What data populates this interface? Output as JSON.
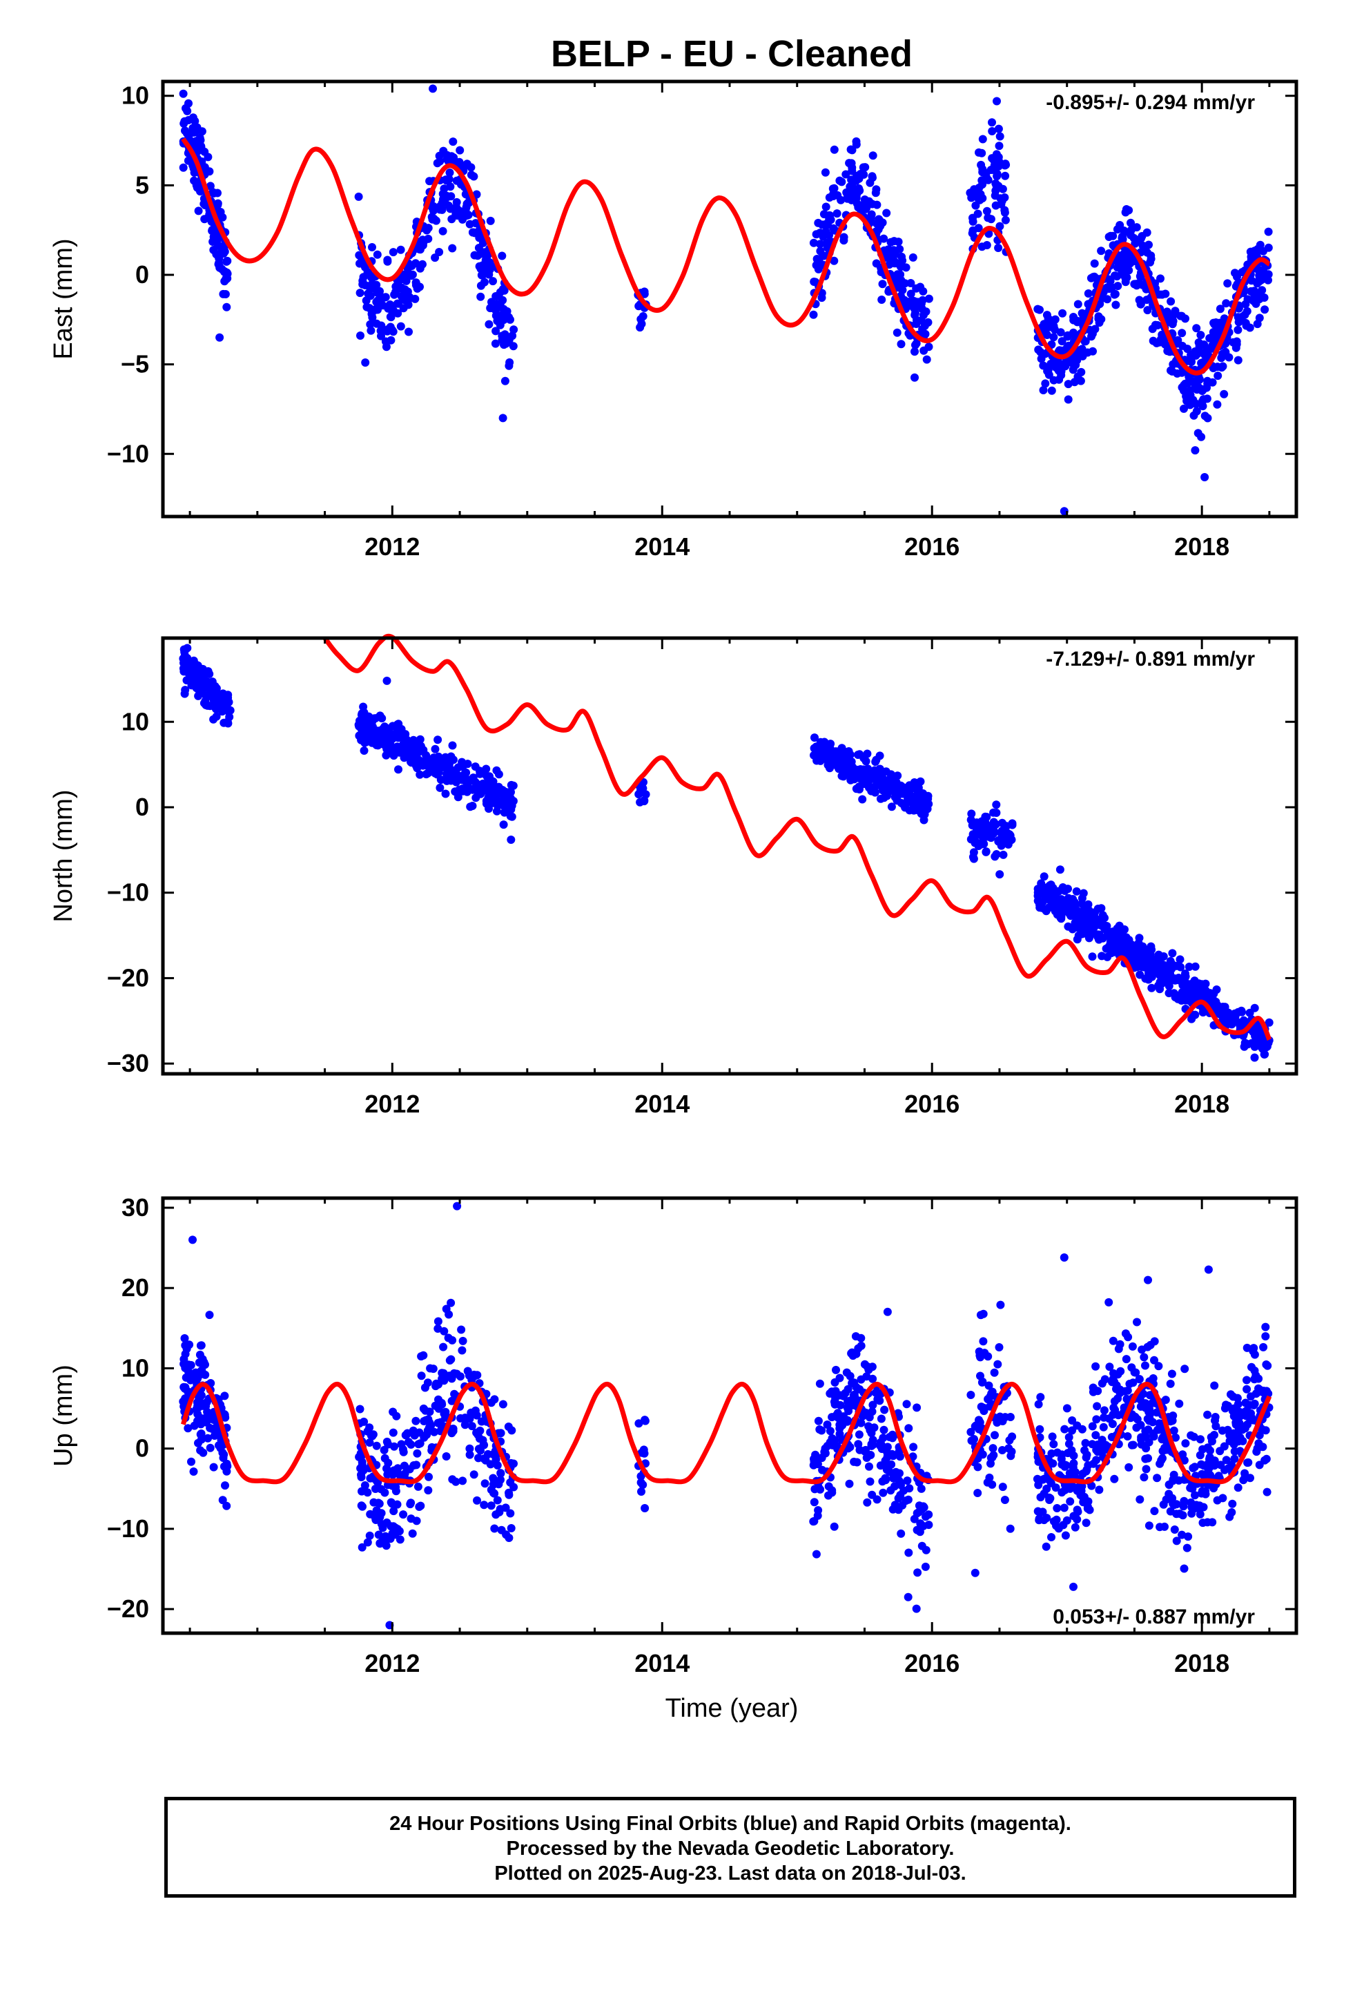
{
  "title": "BELP  - EU - Cleaned",
  "xlabel": "Time (year)",
  "colors": {
    "points": "#0000ff",
    "model": "#ff0000",
    "axes": "#000000",
    "rapid": "#ff00ff"
  },
  "caption": [
    "24 Hour Positions Using Final Orbits (blue) and Rapid Orbits (magenta).",
    "Processed by the Nevada Geodetic Laboratory.",
    "Plotted on 2025-Aug-23. Last data on 2018-Jul-03."
  ],
  "chart_data": [
    {
      "type": "scatter",
      "name": "east",
      "ylabel": "East (mm)",
      "rate_text": "-0.895+/- 0.294 mm/yr",
      "rate_position": "top-right",
      "xlim": [
        2010.3,
        2018.7
      ],
      "ylim": [
        -13.5,
        10.8
      ],
      "xticks": [
        2012,
        2014,
        2016,
        2018
      ],
      "yticks": [
        -10,
        -5,
        0,
        5,
        10
      ],
      "ytick_labels": [
        "−10",
        "−5",
        "0",
        "5",
        "10"
      ],
      "trend": {
        "offset": 0.0,
        "rate": -0.895,
        "t0": 2014.5
      },
      "model_curve": {
        "x": [
          2010.45,
          2010.55,
          2010.7,
          2010.85,
          2011.0,
          2011.15,
          2011.3,
          2011.42,
          2011.55,
          2011.7,
          2011.85,
          2012.0,
          2012.15,
          2012.3,
          2012.42,
          2012.55,
          2012.7,
          2012.85,
          2013.0,
          2013.15,
          2013.3,
          2013.42,
          2013.55,
          2013.7,
          2013.85,
          2014.0,
          2014.15,
          2014.3,
          2014.42,
          2014.55,
          2014.7,
          2014.85,
          2015.0,
          2015.15,
          2015.3,
          2015.42,
          2015.55,
          2015.7,
          2015.85,
          2016.0,
          2016.15,
          2016.3,
          2016.42,
          2016.55,
          2016.7,
          2016.85,
          2017.0,
          2017.15,
          2017.3,
          2017.42,
          2017.55,
          2017.7,
          2017.85,
          2018.0,
          2018.15,
          2018.3,
          2018.42,
          2018.5
        ],
        "y": [
          7.6,
          6.3,
          3.0,
          1.1,
          0.9,
          2.4,
          5.4,
          7.0,
          6.1,
          3.0,
          0.4,
          -0.2,
          1.6,
          4.8,
          6.1,
          5.1,
          2.1,
          -0.5,
          -1.0,
          0.7,
          3.9,
          5.2,
          4.2,
          1.1,
          -1.4,
          -1.9,
          -0.1,
          3.1,
          4.3,
          3.3,
          0.3,
          -2.3,
          -2.7,
          -0.9,
          2.2,
          3.4,
          2.4,
          -0.6,
          -3.1,
          -3.6,
          -1.8,
          1.3,
          2.6,
          1.6,
          -1.5,
          -4.0,
          -4.5,
          -2.7,
          0.4,
          1.7,
          0.7,
          -2.4,
          -4.9,
          -5.4,
          -3.6,
          -0.5,
          0.8,
          0.6
        ]
      },
      "clusters": [
        {
          "t": [
            2010.45,
            2010.78
          ],
          "base": 3.2,
          "amp": 3.6,
          "slope": -6.0,
          "noise": 1.1,
          "n": 150
        },
        {
          "t": [
            2011.75,
            2012.9
          ],
          "base": 1.2,
          "amp": 4.0,
          "slope": -2.0,
          "noise": 1.2,
          "n": 320
        },
        {
          "t": [
            2013.82,
            2013.88
          ],
          "base": -1.6,
          "amp": 0.0,
          "slope": 0.0,
          "noise": 1.2,
          "n": 14
        },
        {
          "t": [
            2015.12,
            2015.98
          ],
          "base": 1.0,
          "amp": 3.2,
          "slope": -1.5,
          "noise": 1.3,
          "n": 260
        },
        {
          "t": [
            2016.28,
            2016.55
          ],
          "base": 3.2,
          "amp": 1.5,
          "slope": 0.0,
          "noise": 1.5,
          "n": 80
        },
        {
          "t": [
            2016.78,
            2018.5
          ],
          "base": -2.3,
          "amp": 3.1,
          "slope": -1.0,
          "noise": 1.2,
          "n": 560
        }
      ],
      "outliers": {
        "x": [
          2011.8,
          2012.82,
          2012.3,
          2016.48,
          2016.98,
          2017.95,
          2018.02,
          2010.72
        ],
        "y": [
          -4.9,
          -8.0,
          10.4,
          9.7,
          -13.2,
          -9.8,
          -11.3,
          -3.5
        ]
      }
    },
    {
      "type": "scatter",
      "name": "north",
      "ylabel": "North (mm)",
      "rate_text": "-7.129+/- 0.891 mm/yr",
      "rate_position": "top-right",
      "xlim": [
        2010.3,
        2018.7
      ],
      "ylim": [
        -31.2,
        19.8
      ],
      "xticks": [
        2012,
        2014,
        2016,
        2018
      ],
      "yticks": [
        -30,
        -20,
        -10,
        0,
        10
      ],
      "ytick_labels": [
        "−30",
        "−20",
        "−10",
        "0",
        "10"
      ],
      "model_curve": {
        "x": [
          2011.5,
          2011.6,
          2011.75,
          2011.9,
          2012.0,
          2012.15,
          2012.3,
          2012.42,
          2012.55,
          2012.7,
          2012.85,
          2013.0,
          2013.15,
          2013.3,
          2013.42,
          2013.55,
          2013.7,
          2013.85,
          2014.0,
          2014.15,
          2014.3,
          2014.42,
          2014.55,
          2014.7,
          2014.85,
          2015.0,
          2015.15,
          2015.3,
          2015.42,
          2015.55,
          2015.7,
          2015.85,
          2016.0,
          2016.15,
          2016.3,
          2016.42,
          2016.55,
          2016.7,
          2016.85,
          2017.0,
          2017.15,
          2017.3,
          2017.42,
          2017.55,
          2017.7,
          2017.85,
          2018.0,
          2018.15,
          2018.3,
          2018.42,
          2018.5
        ],
        "y": [
          19.8,
          17.8,
          16.0,
          19.2,
          19.9,
          17.1,
          15.9,
          17.0,
          13.8,
          9.2,
          9.7,
          12.0,
          9.7,
          9.1,
          11.2,
          6.7,
          1.6,
          3.6,
          5.8,
          2.9,
          2.2,
          3.8,
          -0.7,
          -5.6,
          -3.6,
          -1.4,
          -4.4,
          -5.1,
          -3.5,
          -7.9,
          -12.6,
          -10.8,
          -8.6,
          -11.6,
          -12.2,
          -10.6,
          -15.0,
          -19.7,
          -17.8,
          -15.7,
          -18.7,
          -19.3,
          -17.7,
          -22.3,
          -26.8,
          -24.9,
          -22.8,
          -25.8,
          -26.3,
          -24.7,
          -27.2
        ]
      },
      "clusters": [
        {
          "t": [
            2010.45,
            2010.8
          ],
          "base": 14.0,
          "amp": 0.0,
          "slope": -16.0,
          "noise": 1.0,
          "n": 140
        },
        {
          "t": [
            2011.75,
            2012.9
          ],
          "base": 5.0,
          "amp": 0.0,
          "slope": -8.5,
          "noise": 1.2,
          "n": 330
        },
        {
          "t": [
            2013.82,
            2013.88
          ],
          "base": 1.8,
          "amp": 0.0,
          "slope": 0.0,
          "noise": 1.0,
          "n": 14
        },
        {
          "t": [
            2015.12,
            2015.98
          ],
          "base": 3.4,
          "amp": 0.0,
          "slope": -8.0,
          "noise": 1.0,
          "n": 250
        },
        {
          "t": [
            2016.28,
            2016.6
          ],
          "base": -3.2,
          "amp": 0.0,
          "slope": 0.0,
          "noise": 1.4,
          "n": 80
        },
        {
          "t": [
            2016.78,
            2018.5
          ],
          "base": -18.5,
          "amp": 0.0,
          "slope": -10.5,
          "noise": 1.1,
          "n": 560
        }
      ],
      "outliers": {
        "x": [
          2011.96,
          2012.88,
          2016.95
        ],
        "y": [
          14.8,
          -3.8,
          -7.3
        ]
      }
    },
    {
      "type": "scatter",
      "name": "up",
      "ylabel": "Up (mm)",
      "rate_text": "0.053+/- 0.887 mm/yr",
      "rate_position": "bottom-right",
      "xlim": [
        2010.3,
        2018.7
      ],
      "ylim": [
        -23.0,
        31.2
      ],
      "xticks": [
        2012,
        2014,
        2016,
        2018
      ],
      "yticks": [
        -20,
        -10,
        0,
        10,
        20,
        30
      ],
      "ytick_labels": [
        "−20",
        "−10",
        "0",
        "10",
        "20",
        "30"
      ],
      "model_curve": {
        "x": [
          2010.45,
          2010.52,
          2010.6,
          2010.68,
          2010.78,
          2010.9,
          2011.05,
          2011.2,
          2011.35,
          2011.45,
          2011.52,
          2011.6,
          2011.68,
          2011.78,
          2011.9,
          2012.05,
          2012.2,
          2012.35,
          2012.45,
          2012.52,
          2012.6,
          2012.68,
          2012.78,
          2012.9,
          2013.05,
          2013.2,
          2013.35,
          2013.45,
          2013.52,
          2013.6,
          2013.68,
          2013.78,
          2013.9,
          2014.05,
          2014.2,
          2014.35,
          2014.45,
          2014.52,
          2014.6,
          2014.68,
          2014.78,
          2014.9,
          2015.05,
          2015.2,
          2015.35,
          2015.45,
          2015.52,
          2015.6,
          2015.68,
          2015.78,
          2015.9,
          2016.05,
          2016.2,
          2016.35,
          2016.45,
          2016.52,
          2016.6,
          2016.68,
          2016.78,
          2016.9,
          2017.05,
          2017.2,
          2017.35,
          2017.45,
          2017.52,
          2017.6,
          2017.68,
          2017.78,
          2017.9,
          2018.05,
          2018.2,
          2018.35,
          2018.45,
          2018.5
        ],
        "y": [
          3.0,
          6.5,
          8.0,
          6.0,
          0.5,
          -3.5,
          -4.0,
          -3.7,
          0.5,
          4.5,
          7.0,
          8.0,
          6.0,
          0.5,
          -3.5,
          -4.0,
          -3.7,
          0.5,
          4.5,
          7.0,
          8.0,
          6.0,
          0.5,
          -3.5,
          -4.0,
          -3.7,
          0.5,
          4.5,
          7.0,
          8.0,
          6.0,
          0.5,
          -3.5,
          -4.0,
          -3.7,
          0.5,
          4.5,
          7.0,
          8.0,
          6.0,
          0.5,
          -3.5,
          -4.0,
          -3.7,
          0.5,
          4.5,
          7.0,
          8.0,
          6.0,
          0.5,
          -3.5,
          -4.0,
          -3.7,
          0.5,
          4.5,
          7.0,
          8.0,
          6.0,
          0.5,
          -3.5,
          -4.0,
          -3.7,
          0.5,
          4.5,
          7.0,
          8.0,
          6.0,
          0.5,
          -3.5,
          -4.0,
          -3.7,
          0.5,
          4.5,
          6.5
        ]
      },
      "clusters": [
        {
          "t": [
            2010.45,
            2010.78
          ],
          "base": 2.5,
          "amp": 5.0,
          "slope": 0.0,
          "noise": 3.5,
          "n": 130
        },
        {
          "t": [
            2011.75,
            2012.9
          ],
          "base": 0.5,
          "amp": 6.5,
          "slope": 0.0,
          "noise": 4.5,
          "n": 320
        },
        {
          "t": [
            2013.82,
            2013.88
          ],
          "base": -2.0,
          "amp": 0.0,
          "slope": 0.0,
          "noise": 3.0,
          "n": 14
        },
        {
          "t": [
            2015.12,
            2015.98
          ],
          "base": -1.0,
          "amp": 5.5,
          "slope": 0.0,
          "noise": 4.5,
          "n": 260
        },
        {
          "t": [
            2016.28,
            2016.6
          ],
          "base": 0.0,
          "amp": 4.0,
          "slope": 0.0,
          "noise": 5.5,
          "n": 80
        },
        {
          "t": [
            2016.78,
            2018.5
          ],
          "base": 0.5,
          "amp": 4.5,
          "slope": 0.0,
          "noise": 4.5,
          "n": 560
        }
      ],
      "outliers": {
        "x": [
          2010.52,
          2012.48,
          2016.98,
          2018.05,
          2017.6,
          2011.98,
          2016.32
        ],
        "y": [
          26.0,
          30.2,
          23.8,
          22.3,
          21.0,
          -22.0,
          -15.5
        ]
      }
    }
  ]
}
